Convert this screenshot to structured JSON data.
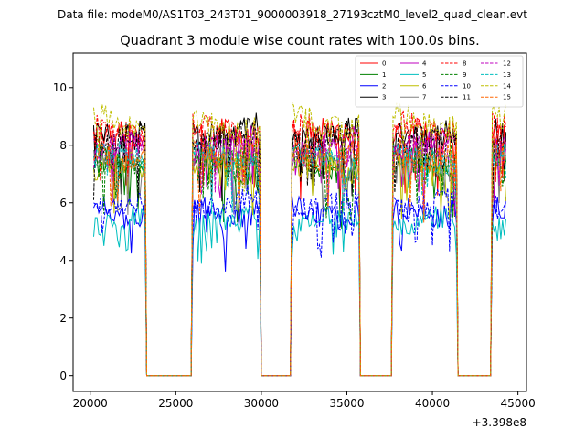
{
  "figure": {
    "suptitle": "Data file: modeM0/AS1T03_243T01_9000003918_27193cztM0_level2_quad_clean.evt"
  },
  "chart_data": {
    "type": "line",
    "title": "Quadrant 3 module wise count rates with 100.0s bins.",
    "xlabel": "",
    "ylabel": "",
    "x_offset_label": "+3.398e8",
    "xlim": [
      19000,
      45500
    ],
    "ylim": [
      -0.55,
      11.2
    ],
    "xticks": [
      20000,
      25000,
      30000,
      35000,
      40000,
      45000
    ],
    "xtick_labels": [
      "20000",
      "25000",
      "30000",
      "35000",
      "40000",
      "45000"
    ],
    "yticks": [
      0,
      2,
      4,
      6,
      8,
      10
    ],
    "ytick_labels": [
      "0",
      "2",
      "4",
      "6",
      "8",
      "10"
    ],
    "legend_position": "top-right",
    "legend_columns": 4,
    "on_segments": [
      [
        20200,
        23200
      ],
      [
        26000,
        29900
      ],
      [
        31800,
        35700
      ],
      [
        37700,
        41400
      ],
      [
        43500,
        44300
      ]
    ],
    "series": [
      {
        "name": "0",
        "color": "#ff0000",
        "dash": "solid",
        "level": 8.3
      },
      {
        "name": "1",
        "color": "#008000",
        "dash": "solid",
        "level": 7.3
      },
      {
        "name": "2",
        "color": "#0000ff",
        "dash": "solid",
        "level": 5.7
      },
      {
        "name": "3",
        "color": "#000000",
        "dash": "solid",
        "level": 8.5
      },
      {
        "name": "4",
        "color": "#bf00bf",
        "dash": "solid",
        "level": 8.0
      },
      {
        "name": "5",
        "color": "#00bfbf",
        "dash": "solid",
        "level": 5.3
      },
      {
        "name": "6",
        "color": "#bfbf00",
        "dash": "solid",
        "level": 7.2
      },
      {
        "name": "7",
        "color": "#808080",
        "dash": "solid",
        "level": 7.4
      },
      {
        "name": "8",
        "color": "#ff0000",
        "dash": "dashed",
        "level": 8.6
      },
      {
        "name": "9",
        "color": "#008000",
        "dash": "dashed",
        "level": 7.6
      },
      {
        "name": "10",
        "color": "#0000ff",
        "dash": "dashed",
        "level": 6.0
      },
      {
        "name": "11",
        "color": "#000000",
        "dash": "dashed",
        "level": 8.2
      },
      {
        "name": "12",
        "color": "#bf00bf",
        "dash": "dashed",
        "level": 7.8
      },
      {
        "name": "13",
        "color": "#00bfbf",
        "dash": "dashed",
        "level": 7.5
      },
      {
        "name": "14",
        "color": "#bfbf00",
        "dash": "dashed",
        "level": 8.8
      },
      {
        "name": "15",
        "color": "#ff6600",
        "dash": "dashed",
        "level": 7.7
      }
    ]
  }
}
